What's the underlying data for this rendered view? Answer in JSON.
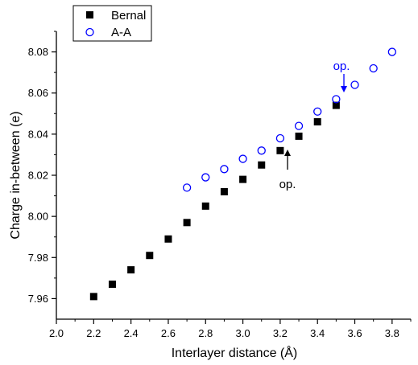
{
  "chart_data": {
    "type": "scatter",
    "xlabel": "Interlayer distance (Å)",
    "ylabel": "Charge in-between (e)",
    "xlim": [
      2.0,
      3.9
    ],
    "ylim": [
      7.95,
      8.09
    ],
    "xticks": [
      2.0,
      2.2,
      2.4,
      2.6,
      2.8,
      3.0,
      3.2,
      3.4,
      3.6,
      3.8
    ],
    "xtick_labels": [
      "2.0",
      "2.2",
      "2.4",
      "2.6",
      "2.8",
      "3.0",
      "3.2",
      "3.4",
      "3.6",
      "3.8"
    ],
    "yticks": [
      7.96,
      7.98,
      8.0,
      8.02,
      8.04,
      8.06,
      8.08
    ],
    "ytick_labels": [
      "7.96",
      "7.98",
      "8.00",
      "8.02",
      "8.04",
      "8.06",
      "8.08"
    ],
    "grid": false,
    "legend_position": "top-left",
    "series": [
      {
        "name": "Bernal",
        "marker": "filled-square",
        "color": "#000000",
        "x": [
          2.2,
          2.3,
          2.4,
          2.5,
          2.6,
          2.7,
          2.8,
          2.9,
          3.0,
          3.1,
          3.2,
          3.3,
          3.4,
          3.5
        ],
        "y": [
          7.961,
          7.967,
          7.974,
          7.981,
          7.989,
          7.997,
          8.005,
          8.012,
          8.018,
          8.025,
          8.032,
          8.039,
          8.046,
          8.054
        ]
      },
      {
        "name": "A-A",
        "marker": "open-circle",
        "color": "#0000ff",
        "x": [
          2.7,
          2.8,
          2.9,
          3.0,
          3.1,
          3.2,
          3.3,
          3.4,
          3.5,
          3.6,
          3.7,
          3.8
        ],
        "y": [
          8.014,
          8.019,
          8.023,
          8.028,
          8.032,
          8.038,
          8.044,
          8.051,
          8.057,
          8.064,
          8.072,
          8.08
        ]
      }
    ],
    "annotations": [
      {
        "text": "op.",
        "color": "#000000",
        "x": 3.2,
        "y": 8.032,
        "arrow_from": "below"
      },
      {
        "text": "op.",
        "color": "#0000ff",
        "x": 3.5,
        "y": 8.057,
        "arrow_from": "above"
      }
    ]
  }
}
